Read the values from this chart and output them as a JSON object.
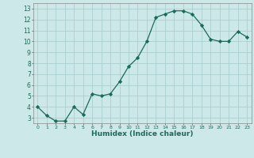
{
  "x": [
    0,
    1,
    2,
    3,
    4,
    5,
    6,
    7,
    8,
    9,
    10,
    11,
    12,
    13,
    14,
    15,
    16,
    17,
    18,
    19,
    20,
    21,
    22,
    23
  ],
  "y": [
    4.0,
    3.2,
    2.7,
    2.7,
    4.0,
    3.3,
    5.2,
    5.0,
    5.2,
    6.3,
    7.7,
    8.5,
    10.0,
    12.2,
    12.5,
    12.8,
    12.8,
    12.5,
    11.5,
    10.2,
    10.0,
    10.0,
    10.9,
    10.4
  ],
  "xlabel": "Humidex (Indice chaleur)",
  "ylim": [
    2.5,
    13.5
  ],
  "xlim": [
    -0.5,
    23.5
  ],
  "yticks": [
    3,
    4,
    5,
    6,
    7,
    8,
    9,
    10,
    11,
    12,
    13
  ],
  "xticks": [
    0,
    1,
    2,
    3,
    4,
    5,
    6,
    7,
    8,
    9,
    10,
    11,
    12,
    13,
    14,
    15,
    16,
    17,
    18,
    19,
    20,
    21,
    22,
    23
  ],
  "line_color": "#1a6b5a",
  "marker_color": "#1a6b5a",
  "bg_color": "#cce8e8",
  "grid_color": "#aacfcf"
}
